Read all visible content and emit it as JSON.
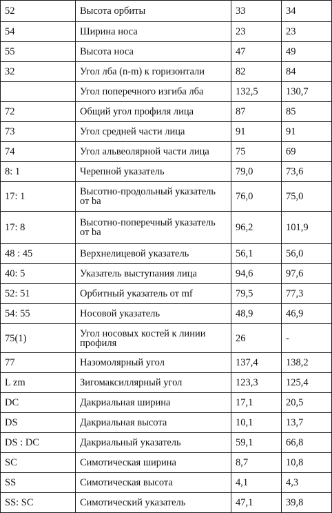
{
  "rows": [
    {
      "code": "52",
      "name": "Высота орбиты",
      "v1": "33",
      "v2": "34"
    },
    {
      "code": "54",
      "name": "Ширина носа",
      "v1": "23",
      "v2": "23"
    },
    {
      "code": "55",
      "name": "Высота носа",
      "v1": "47",
      "v2": "49"
    },
    {
      "code": "32",
      "name": "Угол лба (n-m) к горизонтали",
      "v1": "82",
      "v2": "84"
    },
    {
      "code": "",
      "name": "Угол поперечного изгиба лба",
      "v1": "132,5",
      "v2": "130,7"
    },
    {
      "code": "72",
      "name": "Общий угол профиля лица",
      "v1": "87",
      "v2": "85"
    },
    {
      "code": "73",
      "name": "Угол средней части лица",
      "v1": "91",
      "v2": "91"
    },
    {
      "code": "74",
      "name": "Угол альвеолярной части лица",
      "v1": "75",
      "v2": "69"
    },
    {
      "code": "8: 1",
      "name": "Черепной указатель",
      "v1": "79,0",
      "v2": "73,6"
    },
    {
      "code": "17: 1",
      "name": "Высотно-продольный указатель от ba",
      "v1": "76,0",
      "v2": "75,0"
    },
    {
      "code": "17: 8",
      "name": "Высотно-поперечный указатель от ba",
      "v1": "96,2",
      "v2": "101,9"
    },
    {
      "code": "48 : 45",
      "name": "Верхнелицевой указатель",
      "v1": "56,1",
      "v2": "56,0"
    },
    {
      "code": "40: 5",
      "name": "Указатель выступания лица",
      "v1": "94,6",
      "v2": "97,6"
    },
    {
      "code": "52: 51",
      "name": "Орбитный указатель от mf",
      "v1": "79,5",
      "v2": "77,3"
    },
    {
      "code": "54: 55",
      "name": "Носовой указатель",
      "v1": "48,9",
      "v2": "46,9"
    },
    {
      "code": "75(1)",
      "name": "Угол носовых костей к линии профиля",
      "v1": "26",
      "v2": "-"
    },
    {
      "code": "77",
      "name": "Назомолярный угол",
      "v1": "137,4",
      "v2": "138,2"
    },
    {
      "code": "L zm",
      "name": "Зигомаксиллярный угол",
      "v1": "123,3",
      "v2": "125,4"
    },
    {
      "code": "DC",
      "name": "Дакриальная ширина",
      "v1": "17,1",
      "v2": "20,5"
    },
    {
      "code": "DS",
      "name": "Дакриальная высота",
      "v1": "10,1",
      "v2": "13,7"
    },
    {
      "code": "DS : DC",
      "name": "Дакриальный указатель",
      "v1": "59,1",
      "v2": "66,8"
    },
    {
      "code": "SC",
      "name": "Симотическая ширина",
      "v1": "8,7",
      "v2": "10,8"
    },
    {
      "code": "SS",
      "name": "Симотическая высота",
      "v1": "4,1",
      "v2": "4,3"
    },
    {
      "code": "SS: SC",
      "name": "Симотический указатель",
      "v1": "47,1",
      "v2": "39,8"
    }
  ]
}
